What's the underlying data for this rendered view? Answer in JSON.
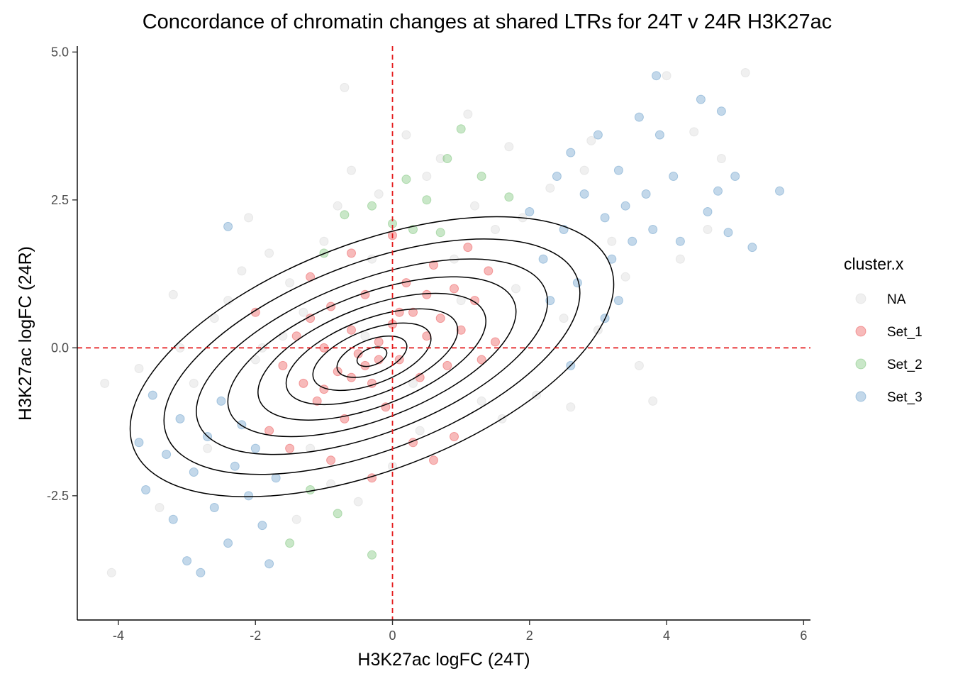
{
  "chart_data": {
    "type": "scatter",
    "title": "Concordance of chromatin changes at shared LTRs for 24T v 24R H3K27ac",
    "xlabel": "H3K27ac logFC (24T)",
    "ylabel": "H3K27ac logFC (24R)",
    "xlim": [
      -4.6,
      6.1
    ],
    "ylim": [
      -4.6,
      5.1
    ],
    "x_ticks": [
      -4,
      -2,
      0,
      2,
      4,
      6
    ],
    "x_tick_labels": [
      "-4",
      "-2",
      "0",
      "2",
      "4",
      "6"
    ],
    "y_ticks": [
      -2.5,
      0.0,
      2.5,
      5.0
    ],
    "y_tick_labels": [
      "-2.5",
      "0.0",
      "2.5",
      "5.0"
    ],
    "grid": false,
    "reference_lines": {
      "x": 0,
      "y": 0,
      "color": "#e41a1c",
      "style": "dashed"
    },
    "legend": {
      "title": "cluster.x",
      "position": "right",
      "entries": [
        {
          "label": "NA",
          "color": "#cccccc"
        },
        {
          "label": "Set_1",
          "color": "#e41a1c"
        },
        {
          "label": "Set_2",
          "color": "#4daf4a"
        },
        {
          "label": "Set_3",
          "color": "#377eb8"
        }
      ]
    },
    "point_alpha": 0.3,
    "series": [
      {
        "name": "NA",
        "color": "#cccccc",
        "points": [
          [
            -4.1,
            -3.8
          ],
          [
            -3.7,
            -0.35
          ],
          [
            -3.2,
            0.9
          ],
          [
            -3.1,
            0.0
          ],
          [
            -2.9,
            -0.6
          ],
          [
            -2.6,
            0.5
          ],
          [
            -2.4,
            0.8
          ],
          [
            -2.2,
            1.3
          ],
          [
            -2.1,
            2.2
          ],
          [
            -2.0,
            -0.2
          ],
          [
            -1.8,
            1.6
          ],
          [
            -1.6,
            0.2
          ],
          [
            -1.5,
            1.1
          ],
          [
            -1.3,
            0.6
          ],
          [
            -1.2,
            -1.7
          ],
          [
            -1.0,
            1.8
          ],
          [
            -0.9,
            -2.3
          ],
          [
            -0.8,
            2.4
          ],
          [
            -0.6,
            3.0
          ],
          [
            -0.7,
            4.4
          ],
          [
            -0.5,
            -2.6
          ],
          [
            -0.3,
            1.5
          ],
          [
            -0.2,
            2.6
          ],
          [
            0.0,
            -2.0
          ],
          [
            0.2,
            3.6
          ],
          [
            0.4,
            -1.4
          ],
          [
            0.5,
            2.9
          ],
          [
            0.7,
            3.2
          ],
          [
            0.9,
            1.5
          ],
          [
            1.1,
            3.95
          ],
          [
            1.2,
            2.4
          ],
          [
            1.3,
            -0.9
          ],
          [
            1.5,
            2.0
          ],
          [
            1.6,
            -1.2
          ],
          [
            1.8,
            1.0
          ],
          [
            1.9,
            2.2
          ],
          [
            2.1,
            -0.8
          ],
          [
            2.3,
            2.7
          ],
          [
            2.5,
            0.5
          ],
          [
            2.6,
            -1.0
          ],
          [
            2.8,
            3.0
          ],
          [
            3.0,
            0.3
          ],
          [
            3.2,
            1.8
          ],
          [
            3.4,
            1.2
          ],
          [
            3.6,
            -0.3
          ],
          [
            3.8,
            -0.9
          ],
          [
            4.0,
            4.6
          ],
          [
            4.2,
            1.5
          ],
          [
            4.4,
            3.65
          ],
          [
            4.6,
            2.0
          ],
          [
            4.8,
            3.2
          ],
          [
            5.15,
            4.65
          ],
          [
            -3.4,
            -2.7
          ],
          [
            -2.7,
            -1.7
          ],
          [
            -1.4,
            -2.9
          ],
          [
            -4.2,
            -0.6
          ],
          [
            2.9,
            3.5
          ],
          [
            1.7,
            3.4
          ],
          [
            -0.4,
            0.2
          ],
          [
            0.3,
            -0.6
          ],
          [
            -1.9,
            0.0
          ],
          [
            1.0,
            0.8
          ]
        ]
      },
      {
        "name": "Set_1",
        "color": "#e41a1c",
        "points": [
          [
            -1.6,
            -0.3
          ],
          [
            -1.4,
            0.2
          ],
          [
            -1.3,
            -0.6
          ],
          [
            -1.2,
            0.5
          ],
          [
            -1.1,
            -0.9
          ],
          [
            -1.0,
            0.0
          ],
          [
            -0.9,
            0.7
          ],
          [
            -0.8,
            -0.4
          ],
          [
            -0.7,
            -1.2
          ],
          [
            -0.6,
            0.3
          ],
          [
            -0.5,
            -0.1
          ],
          [
            -0.4,
            0.9
          ],
          [
            -0.3,
            -0.6
          ],
          [
            -0.2,
            0.1
          ],
          [
            -0.1,
            -1.0
          ],
          [
            0.0,
            0.4
          ],
          [
            0.1,
            -0.2
          ],
          [
            0.2,
            1.1
          ],
          [
            0.3,
            0.6
          ],
          [
            0.4,
            -0.5
          ],
          [
            0.5,
            0.2
          ],
          [
            0.6,
            1.4
          ],
          [
            0.7,
            0.5
          ],
          [
            0.8,
            -0.3
          ],
          [
            0.9,
            1.0
          ],
          [
            1.0,
            0.3
          ],
          [
            1.1,
            1.7
          ],
          [
            1.2,
            0.8
          ],
          [
            1.3,
            -0.2
          ],
          [
            1.4,
            1.3
          ],
          [
            -1.8,
            -1.4
          ],
          [
            -1.5,
            -1.7
          ],
          [
            -1.2,
            1.2
          ],
          [
            -0.9,
            -1.9
          ],
          [
            -0.6,
            1.6
          ],
          [
            -0.3,
            -2.2
          ],
          [
            0.0,
            1.9
          ],
          [
            0.3,
            -1.6
          ],
          [
            0.6,
            -1.9
          ],
          [
            0.9,
            -1.5
          ],
          [
            1.5,
            0.1
          ],
          [
            -2.0,
            0.6
          ],
          [
            -0.4,
            -0.3
          ],
          [
            -0.2,
            -0.2
          ],
          [
            -0.6,
            -0.5
          ],
          [
            0.1,
            0.6
          ],
          [
            -1.0,
            -0.7
          ],
          [
            0.5,
            0.9
          ]
        ]
      },
      {
        "name": "Set_2",
        "color": "#4daf4a",
        "points": [
          [
            1.0,
            3.7
          ],
          [
            0.2,
            2.85
          ],
          [
            0.8,
            3.2
          ],
          [
            -0.3,
            2.4
          ],
          [
            0.5,
            2.5
          ],
          [
            1.3,
            2.9
          ],
          [
            -0.7,
            2.25
          ],
          [
            0.0,
            2.1
          ],
          [
            0.7,
            1.95
          ],
          [
            -0.3,
            -3.5
          ],
          [
            -0.8,
            -2.8
          ],
          [
            -1.5,
            -3.3
          ],
          [
            -1.2,
            -2.4
          ],
          [
            1.7,
            2.55
          ],
          [
            -1.0,
            1.6
          ],
          [
            0.3,
            2.0
          ]
        ]
      },
      {
        "name": "Set_3",
        "color": "#377eb8",
        "points": [
          [
            -3.7,
            -1.6
          ],
          [
            -3.6,
            -2.4
          ],
          [
            -3.5,
            -0.8
          ],
          [
            -3.3,
            -1.8
          ],
          [
            -3.2,
            -2.9
          ],
          [
            -3.1,
            -1.2
          ],
          [
            -3.0,
            -3.6
          ],
          [
            -2.9,
            -2.1
          ],
          [
            -2.8,
            -3.8
          ],
          [
            -2.7,
            -1.5
          ],
          [
            -2.6,
            -2.7
          ],
          [
            -2.5,
            -0.9
          ],
          [
            -2.4,
            -3.3
          ],
          [
            -2.3,
            -2.0
          ],
          [
            -2.2,
            -1.3
          ],
          [
            -2.1,
            -2.5
          ],
          [
            -2.0,
            -1.7
          ],
          [
            -1.9,
            -3.0
          ],
          [
            -1.8,
            -3.65
          ],
          [
            -1.7,
            -2.2
          ],
          [
            -2.4,
            2.05
          ],
          [
            2.0,
            2.3
          ],
          [
            2.2,
            1.5
          ],
          [
            2.4,
            2.9
          ],
          [
            2.5,
            2.0
          ],
          [
            2.6,
            3.3
          ],
          [
            2.7,
            1.1
          ],
          [
            2.8,
            2.6
          ],
          [
            3.0,
            3.6
          ],
          [
            3.1,
            2.2
          ],
          [
            3.2,
            1.5
          ],
          [
            3.3,
            3.0
          ],
          [
            3.4,
            2.4
          ],
          [
            3.5,
            1.8
          ],
          [
            3.6,
            3.9
          ],
          [
            3.7,
            2.6
          ],
          [
            3.8,
            2.0
          ],
          [
            3.85,
            4.6
          ],
          [
            3.9,
            3.6
          ],
          [
            4.1,
            2.9
          ],
          [
            4.2,
            1.8
          ],
          [
            4.5,
            4.2
          ],
          [
            4.6,
            2.3
          ],
          [
            4.75,
            2.65
          ],
          [
            4.8,
            4.0
          ],
          [
            4.9,
            1.95
          ],
          [
            5.0,
            2.9
          ],
          [
            5.25,
            1.7
          ],
          [
            5.65,
            2.65
          ],
          [
            2.3,
            0.8
          ],
          [
            2.6,
            -0.3
          ],
          [
            3.1,
            0.5
          ],
          [
            3.3,
            0.8
          ]
        ]
      }
    ],
    "density_contours": true
  }
}
